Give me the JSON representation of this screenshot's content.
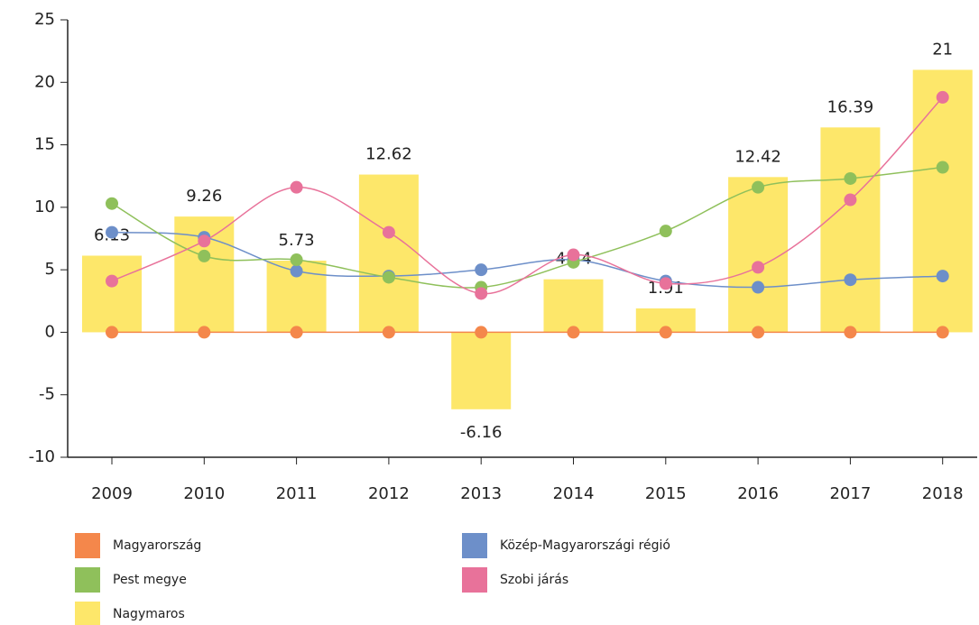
{
  "chart_data": {
    "type": "bar",
    "categories": [
      "2009",
      "2010",
      "2011",
      "2012",
      "2013",
      "2014",
      "2015",
      "2016",
      "2017",
      "2018"
    ],
    "ylim": [
      -10,
      25
    ],
    "yticks": [
      -10,
      -5,
      0,
      5,
      10,
      15,
      20,
      25
    ],
    "series": [
      {
        "name": "Magyarország",
        "type": "line",
        "color": "#f4874b",
        "values": [
          0,
          0,
          0,
          0,
          0,
          0,
          0,
          0,
          0,
          0
        ]
      },
      {
        "name": "Közép-Magyarországi régió",
        "type": "line",
        "color": "#6d8fc9",
        "values": [
          8,
          7.6,
          4.9,
          4.5,
          5.0,
          5.8,
          4.1,
          3.6,
          4.2,
          4.5
        ]
      },
      {
        "name": "Pest megye",
        "type": "line",
        "color": "#8fc05b",
        "values": [
          10.3,
          6.1,
          5.8,
          4.4,
          3.6,
          5.6,
          8.1,
          11.6,
          12.3,
          13.2
        ]
      },
      {
        "name": "Szobi járás",
        "type": "line",
        "color": "#e8729a",
        "values": [
          4.1,
          7.3,
          11.6,
          8.0,
          3.1,
          6.2,
          3.9,
          5.2,
          10.6,
          18.8
        ]
      },
      {
        "name": "Nagymaros",
        "type": "bar",
        "color": "#fde76a",
        "values": [
          6.13,
          9.26,
          5.73,
          12.62,
          -6.16,
          4.24,
          1.91,
          12.42,
          16.39,
          21
        ]
      }
    ]
  }
}
